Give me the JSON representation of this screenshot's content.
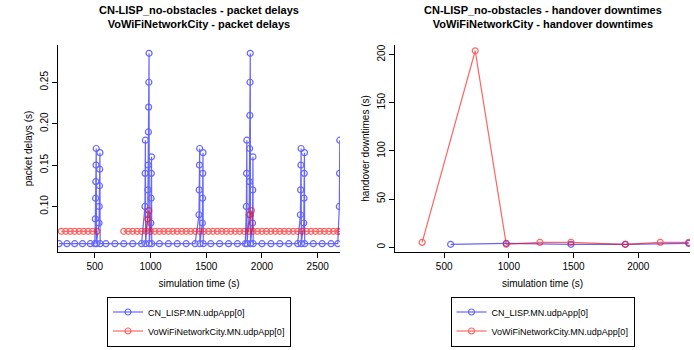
{
  "chart_data": [
    {
      "type": "line",
      "title": "CN-LISP_no-obstacles - packet delays\nVoWiFiNetworkCity - packet delays",
      "x_label": "simulation time (s)",
      "y_label": "packet delays (s)",
      "xlim": [
        170,
        2700
      ],
      "ylim": [
        0.045,
        0.295
      ],
      "xticks": [
        500,
        1000,
        1500,
        2000,
        2500
      ],
      "yticks": [
        {
          "value": 0.1,
          "label": "0.10"
        },
        {
          "value": 0.15,
          "label": "0.15"
        },
        {
          "value": 0.2,
          "label": "0.20"
        },
        {
          "value": 0.25,
          "label": "0.25"
        }
      ],
      "grid": false,
      "legend": "bottom",
      "marker": "circle-open",
      "line_style": "solid",
      "series": [
        {
          "name": "CN_LISP.MN.udpApp[0]",
          "color": "#0000ff",
          "x": [
            180,
            250,
            320,
            390,
            460,
            500,
            505,
            507,
            509,
            511,
            513,
            515,
            538,
            540,
            542,
            544,
            546,
            548,
            600,
            680,
            760,
            840,
            920,
            950,
            952,
            954,
            956,
            975,
            977,
            979,
            981,
            983,
            985,
            987,
            989,
            1003,
            1005,
            1007,
            1009,
            1011,
            1080,
            1160,
            1240,
            1320,
            1400,
            1435,
            1437,
            1439,
            1441,
            1443,
            1465,
            1467,
            1469,
            1471,
            1473,
            1540,
            1620,
            1700,
            1780,
            1850,
            1860,
            1862,
            1864,
            1866,
            1885,
            1887,
            1889,
            1891,
            1893,
            1895,
            1897,
            1915,
            1917,
            1919,
            1921,
            2000,
            2080,
            2160,
            2240,
            2320,
            2345,
            2347,
            2349,
            2351,
            2353,
            2375,
            2377,
            2379,
            2381,
            2383,
            2460,
            2540,
            2620,
            2680,
            2694,
            2696,
            2698
          ],
          "values": [
            0.055,
            0.055,
            0.055,
            0.055,
            0.055,
            0.055,
            0.085,
            0.11,
            0.13,
            0.15,
            0.17,
            0.055,
            0.08,
            0.1,
            0.125,
            0.145,
            0.165,
            0.055,
            0.055,
            0.055,
            0.055,
            0.055,
            0.055,
            0.1,
            0.14,
            0.18,
            0.055,
            0.09,
            0.12,
            0.15,
            0.19,
            0.22,
            0.25,
            0.285,
            0.055,
            0.08,
            0.11,
            0.14,
            0.16,
            0.055,
            0.055,
            0.055,
            0.055,
            0.055,
            0.055,
            0.09,
            0.12,
            0.15,
            0.17,
            0.055,
            0.08,
            0.11,
            0.14,
            0.165,
            0.055,
            0.055,
            0.055,
            0.055,
            0.055,
            0.055,
            0.1,
            0.14,
            0.18,
            0.055,
            0.09,
            0.13,
            0.17,
            0.21,
            0.25,
            0.285,
            0.055,
            0.08,
            0.12,
            0.16,
            0.055,
            0.055,
            0.055,
            0.055,
            0.055,
            0.055,
            0.09,
            0.12,
            0.15,
            0.17,
            0.055,
            0.08,
            0.11,
            0.14,
            0.165,
            0.055,
            0.055,
            0.055,
            0.055,
            0.055,
            0.1,
            0.14,
            0.18
          ]
        },
        {
          "name": "VoWiFiNetworkCity.MN.udpApp[0]",
          "color": "#ff0000",
          "x": [
            200,
            240,
            280,
            320,
            360,
            400,
            440,
            480,
            520,
            640,
            760,
            800,
            840,
            880,
            920,
            960,
            975,
            985,
            1000,
            1040,
            1080,
            1120,
            1160,
            1200,
            1240,
            1280,
            1320,
            1360,
            1400,
            1440,
            1480,
            1520,
            1560,
            1600,
            1640,
            1680,
            1720,
            1760,
            1800,
            1840,
            1880,
            1895,
            1905,
            1920,
            1960,
            2000,
            2040,
            2080,
            2120,
            2160,
            2200,
            2240,
            2280,
            2320,
            2360,
            2400,
            2440,
            2480,
            2520,
            2560,
            2600,
            2640,
            2680,
            2700
          ],
          "values": [
            0.07,
            0.07,
            0.07,
            0.07,
            0.07,
            0.07,
            0.07,
            0.07,
            0.07,
            null,
            0.07,
            0.07,
            0.07,
            0.07,
            0.07,
            0.07,
            0.085,
            0.095,
            0.07,
            0.07,
            0.07,
            0.07,
            0.07,
            0.07,
            0.07,
            0.07,
            0.07,
            0.07,
            0.07,
            0.07,
            0.07,
            0.07,
            0.07,
            0.07,
            0.07,
            0.07,
            0.07,
            0.07,
            0.07,
            0.07,
            0.07,
            0.09,
            0.095,
            0.07,
            0.07,
            0.07,
            0.07,
            0.07,
            0.07,
            0.07,
            0.07,
            0.07,
            0.07,
            0.07,
            0.07,
            0.07,
            0.07,
            0.07,
            0.07,
            0.07,
            0.07,
            0.07,
            0.07,
            0.07
          ]
        }
      ]
    },
    {
      "type": "line",
      "title": "CN-LISP_no-obstacles - handover downtimes\nVoWiFiNetworkCity - handover downtimes",
      "x_label": "simulation time (s)",
      "y_label": "handover downtimes (s)",
      "xlim": [
        120,
        2400
      ],
      "ylim": [
        -5,
        210
      ],
      "xticks": [
        500,
        1000,
        1500,
        2000
      ],
      "yticks": [
        0,
        50,
        100,
        150,
        200
      ],
      "grid": false,
      "legend": "bottom",
      "marker": "circle-open",
      "line_style": "solid",
      "series": [
        {
          "name": "CN_LISP.MN.udpApp[0]",
          "color": "#0000ff",
          "x": [
            550,
            980,
            1480,
            1900,
            2390
          ],
          "values": [
            3,
            4,
            3,
            3,
            4
          ]
        },
        {
          "name": "VoWiFiNetworkCity.MN.udpApp[0]",
          "color": "#ff0000",
          "x": [
            330,
            740,
            980,
            1240,
            1480,
            1900,
            2170,
            2390
          ],
          "values": [
            5,
            204,
            3,
            5,
            5,
            3,
            5,
            5
          ]
        }
      ]
    }
  ]
}
